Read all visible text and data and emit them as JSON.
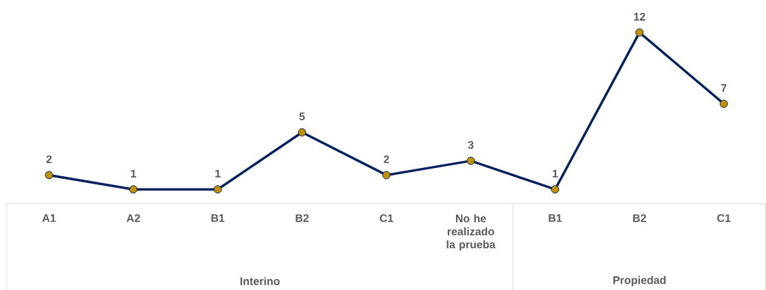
{
  "chart_data": {
    "type": "line",
    "categories": [
      "A1",
      "A2",
      "B1",
      "B2",
      "C1",
      "No he realizado la prueba",
      "B1",
      "B2",
      "C1"
    ],
    "values": [
      2,
      1,
      1,
      5,
      2,
      3,
      1,
      12,
      7
    ],
    "color": "#002060",
    "colors": [
      "#bf9000",
      "#bf9000",
      "#bf9000",
      "#bf9000",
      "#bf9000",
      "#bf9000",
      "#bf9000",
      "#bf9000",
      "#bf9000"
    ],
    "marker": "circle",
    "data_labels": true,
    "annotations": [
      "Interino",
      "Propiedad"
    ]
  }
}
